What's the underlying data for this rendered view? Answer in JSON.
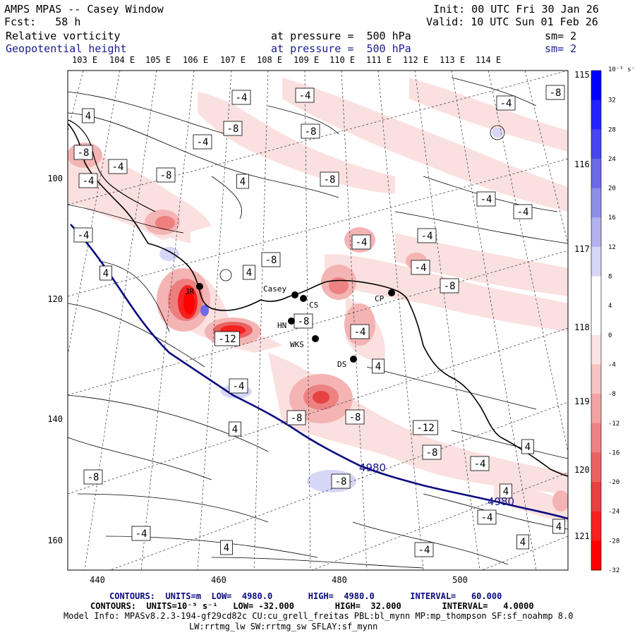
{
  "header": {
    "title": "AMPS MPAS -- Casey Window",
    "forecast": "Fcst:   58 h",
    "init": "Init: 00 UTC Fri 30 Jan 26",
    "valid": "Valid: 10 UTC Sun 01 Feb 26",
    "field1_name": "Relative vorticity",
    "field1_level": "at pressure =  500 hPa",
    "field1_sm": "sm= 2",
    "field2_name": "Geopotential height",
    "field2_level": "at pressure =  500 hPa",
    "field2_sm": "sm= 2"
  },
  "lon_labels_top": [
    "103 E",
    "104 E",
    "105 E",
    "106 E",
    "107 E",
    "108 E",
    "109 E",
    "110 E",
    "111 E",
    "112 E",
    "113 E",
    "114 E"
  ],
  "lon_labels_right": [
    "115 E",
    "116 E",
    "117 E",
    "118 E",
    "119 E",
    "120 E",
    "121 E"
  ],
  "y_axis_labels": [
    "100",
    "120",
    "140",
    "160"
  ],
  "x_axis_labels": [
    "440",
    "460",
    "480",
    "500"
  ],
  "stations": [
    "Casey",
    "CS",
    "CP",
    "HN",
    "WKS",
    "DS",
    "JR"
  ],
  "contour_labels": {
    "vorticity": [
      "-4",
      "-4",
      "-8",
      "-4",
      "4",
      "-8",
      "-8",
      "-8",
      "-4",
      "-4",
      "-8",
      "4",
      "-8",
      "-4",
      "-4",
      "-4",
      "-4",
      "-4",
      "-4",
      "-8",
      "4",
      "4",
      "-4",
      "-8",
      "-8",
      "-4",
      "4",
      "-12",
      "-4",
      "-8",
      "-8",
      "-12",
      "-8",
      "4",
      "-4",
      "4",
      "-8",
      "4",
      "-4",
      "-8",
      "4",
      "-4",
      "-4",
      "4",
      "4",
      "4",
      "-8",
      "4"
    ],
    "height": [
      "4980",
      "4980"
    ]
  },
  "colorbar": {
    "unit": "10⁻⁵ s⁻¹",
    "ticks": [
      "32",
      "28",
      "24",
      "20",
      "16",
      "12",
      "8",
      "4",
      "0",
      "-4",
      "-8",
      "-12",
      "-16",
      "-20",
      "-24",
      "-28",
      "-32"
    ],
    "colors": [
      "#0000ff",
      "#2222ff",
      "#4646f0",
      "#6a6ae6",
      "#8e8ee8",
      "#b2b2ef",
      "#d6d6f7",
      "#ffffff",
      "#ffffff",
      "#fbe4e4",
      "#f7c3c3",
      "#f2a3a3",
      "#ee8282",
      "#ea6161",
      "#e84141",
      "#f52020",
      "#ff0000"
    ]
  },
  "footer": {
    "contours1": "CONTOURS:  UNITS=m  LOW=  4980.0       HIGH=  4980.0       INTERVAL=   60.000",
    "contours2": "CONTOURS:  UNITS=10⁻⁵ s⁻¹   LOW= -32.000        HIGH=  32.000        INTERVAL=   4.0000",
    "model_info": "Model Info: MPASv8.2.3-194-gf29cd82c CU:cu_grell_freitas PBL:bl_mynn MP:mp_thompson SF:sf_noahmp 8.0",
    "model_info2": "LW:rrtmg_lw SW:rrtmg_sw SFLAY:sf_mynn"
  }
}
